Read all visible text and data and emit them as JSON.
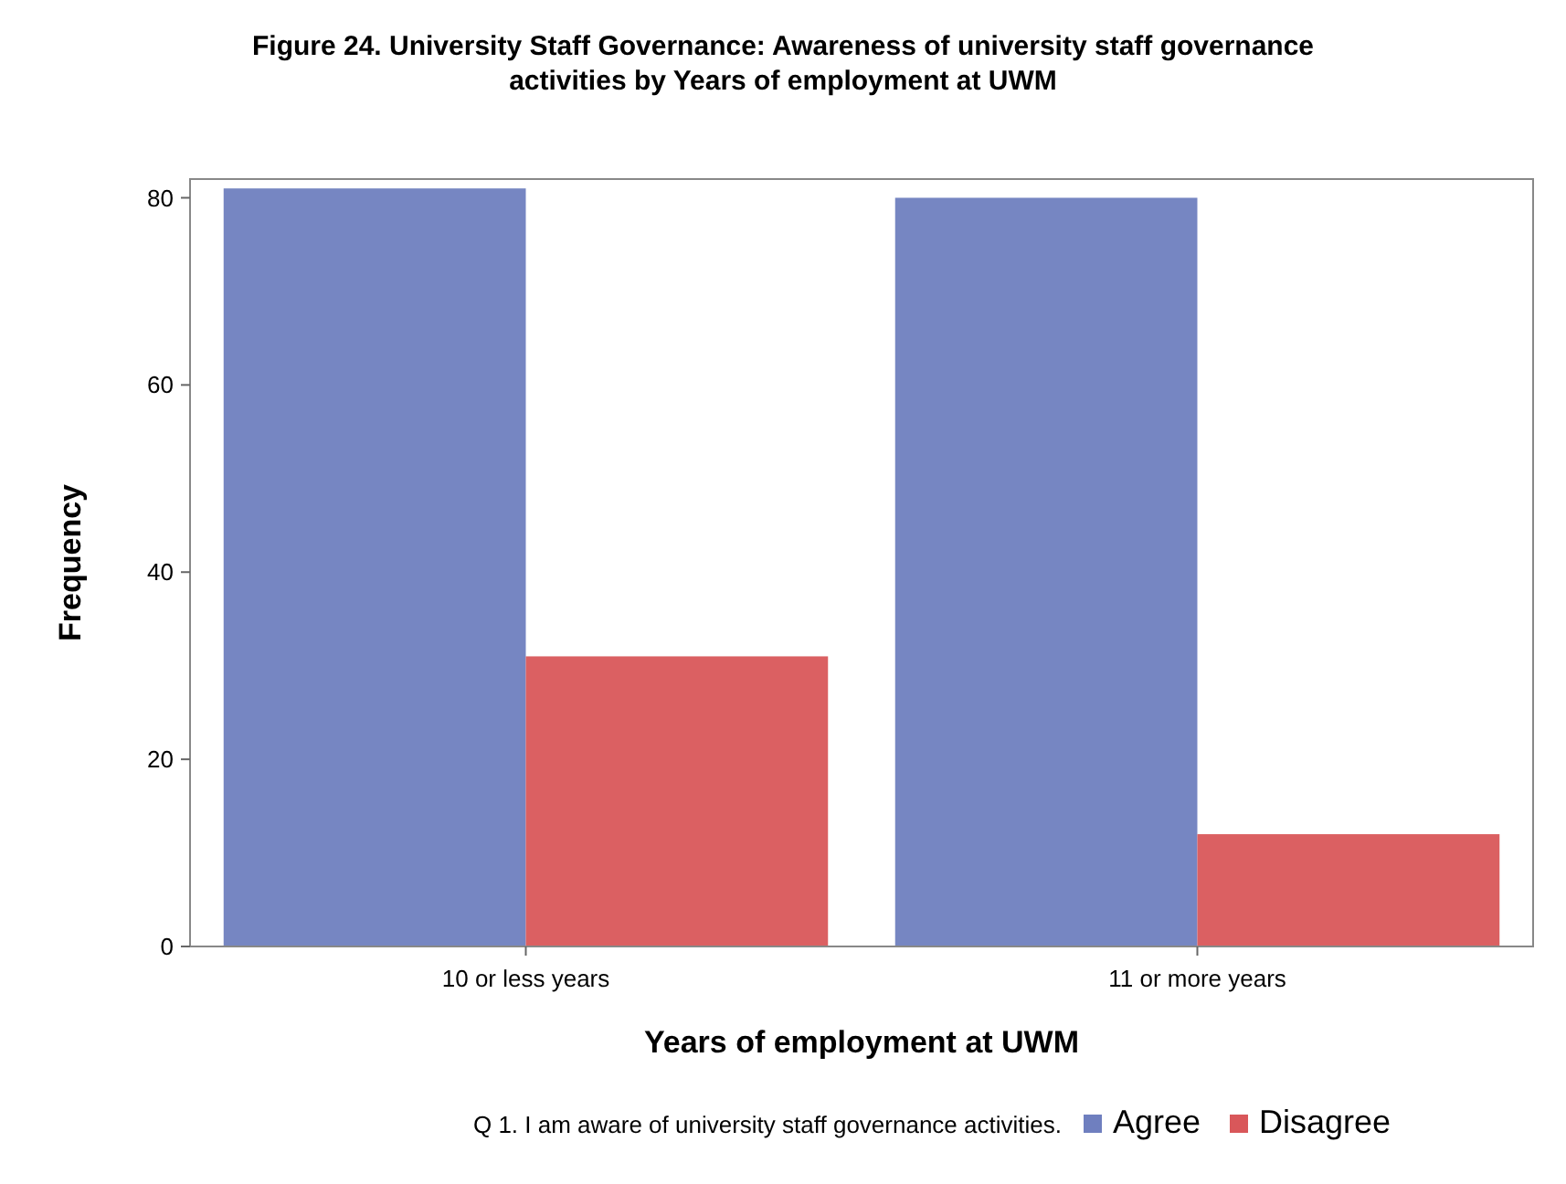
{
  "chart_data": {
    "type": "bar",
    "title": "Figure 24. University Staff Governance: Awareness of university staff governance activities by Years of employment at UWM",
    "xlabel": "Years of employment at UWM",
    "ylabel": "Frequency",
    "legend_title": "Q 1. I am aware of university staff governance activities.",
    "categories": [
      "10 or less years",
      "11 or more years"
    ],
    "series": [
      {
        "name": "Agree",
        "color": "#6f7fbf",
        "values": [
          81,
          80
        ]
      },
      {
        "name": "Disagree",
        "color": "#d9575a",
        "values": [
          31,
          12
        ]
      }
    ],
    "ylim": [
      0,
      82
    ],
    "yticks": [
      0,
      20,
      40,
      60,
      80
    ],
    "grid": false,
    "legend": "bottom"
  }
}
